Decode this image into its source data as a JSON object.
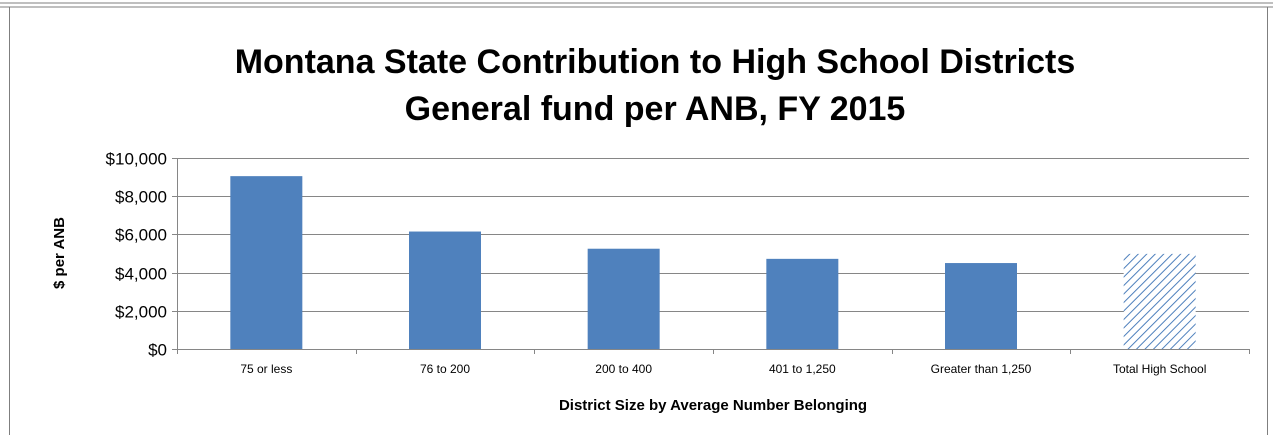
{
  "chart_data": {
    "type": "bar",
    "title_lines": [
      "Montana State Contribution to High School Districts",
      "General fund per ANB, FY 2015"
    ],
    "xlabel": "District Size by Average Number Belonging",
    "ylabel": "$ per ANB",
    "ylim": [
      0,
      10000
    ],
    "yticks": [
      {
        "value": 0,
        "label": "$0"
      },
      {
        "value": 2000,
        "label": "$2,000"
      },
      {
        "value": 4000,
        "label": "$4,000"
      },
      {
        "value": 6000,
        "label": "$6,000"
      },
      {
        "value": 8000,
        "label": "$8,000"
      },
      {
        "value": 10000,
        "label": "$10,000"
      }
    ],
    "grid": true,
    "legend": "none",
    "bar_color": "#4F81BD",
    "bars": [
      {
        "category": "75 or less",
        "value": 9050,
        "style": "solid"
      },
      {
        "category": "76 to 200",
        "value": 6150,
        "style": "solid"
      },
      {
        "category": "200 to 400",
        "value": 5250,
        "style": "solid"
      },
      {
        "category": "401 to 1,250",
        "value": 4720,
        "style": "solid"
      },
      {
        "category": "Greater than 1,250",
        "value": 4500,
        "style": "solid"
      },
      {
        "category": "Total High School",
        "value": 4980,
        "style": "hatched"
      }
    ]
  }
}
